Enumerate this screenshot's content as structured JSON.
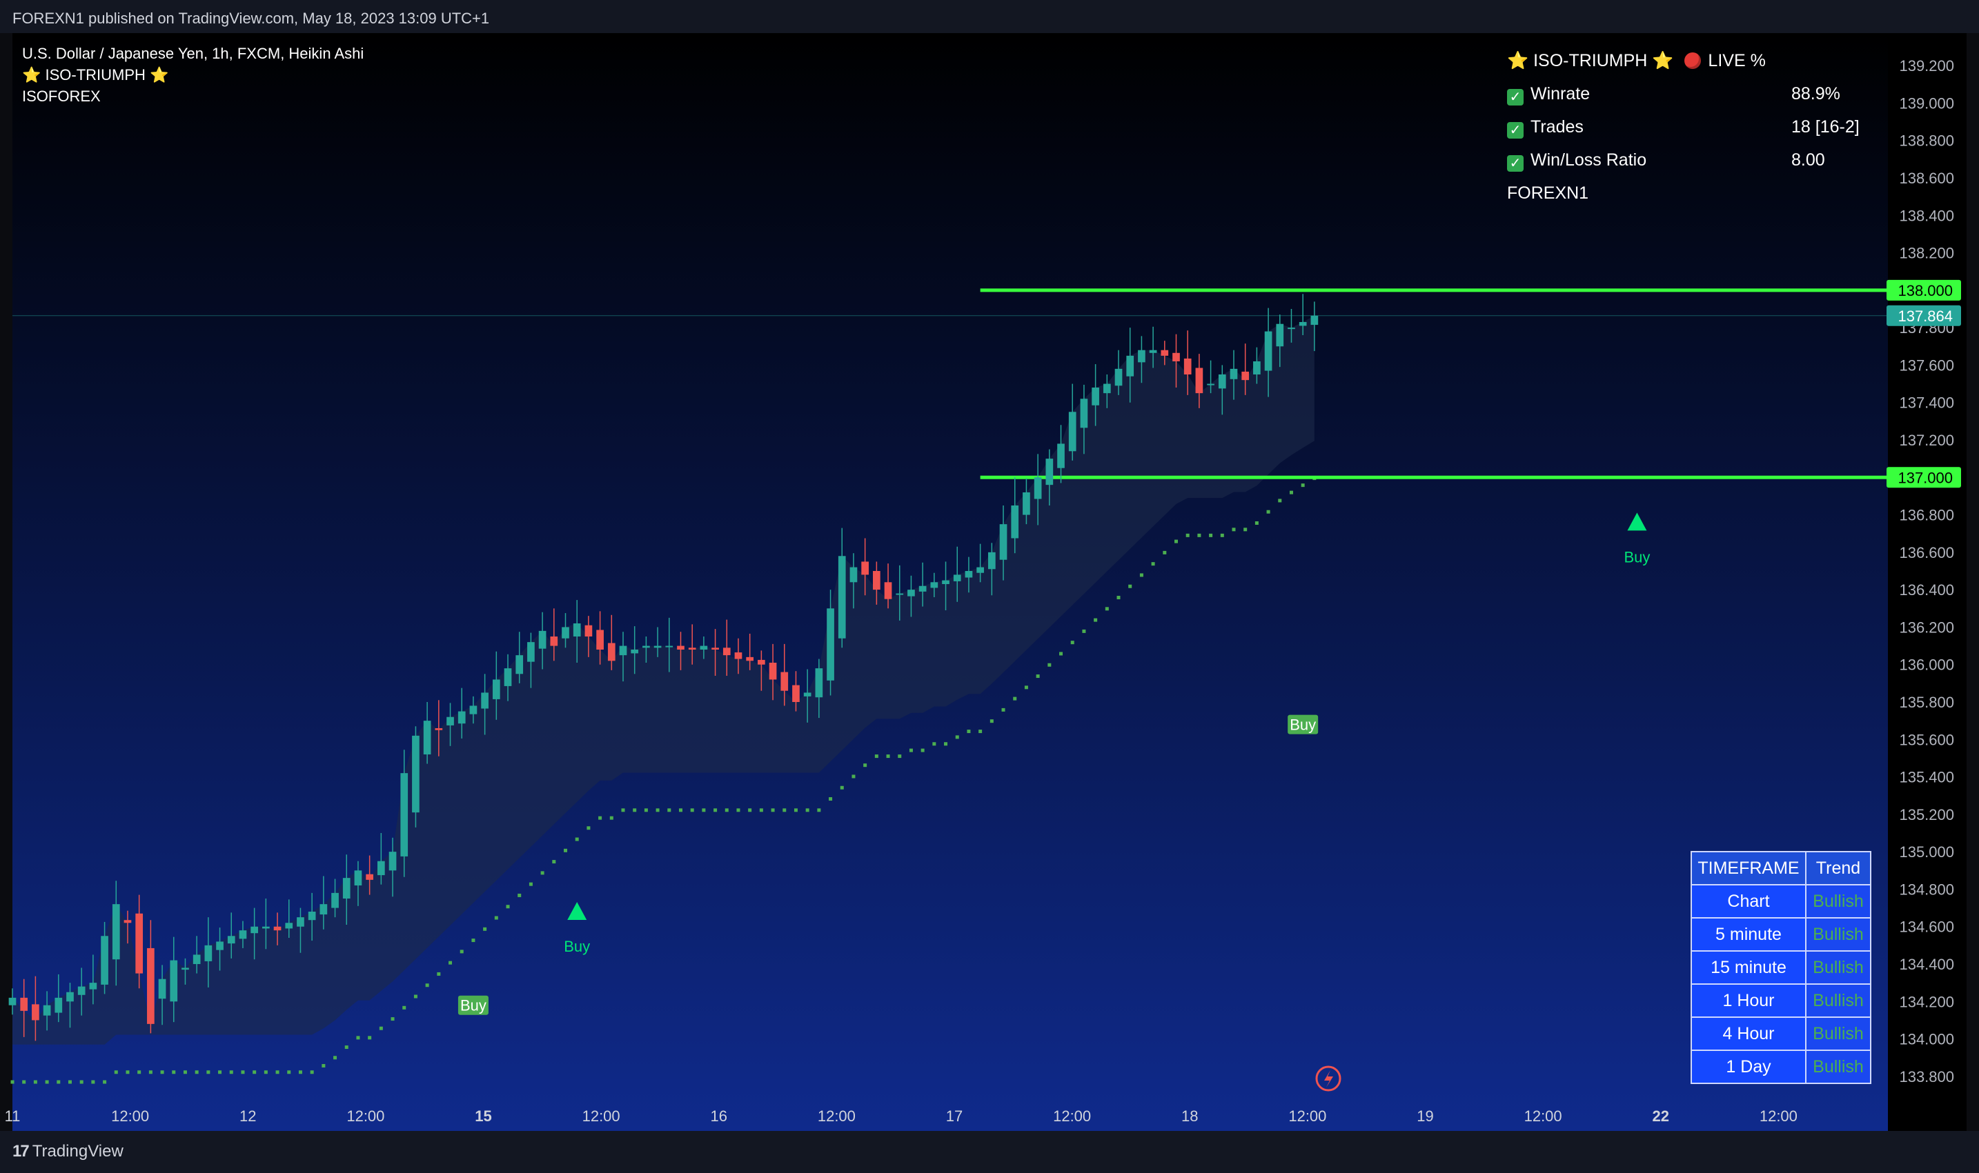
{
  "header": {
    "published": "FOREXN1 published on TradingView.com, May 18, 2023 13:09 UTC+1"
  },
  "legend": {
    "symbol": "U.S. Dollar / Japanese Yen, 1h, FXCM, Heikin Ashi",
    "indicator": "⭐ ISO-TRIUMPH ⭐",
    "author": "ISOFOREX"
  },
  "stats": {
    "title": "⭐ ISO-TRIUMPH ⭐",
    "live_label": "LIVE %",
    "rows": [
      {
        "label": "Winrate",
        "value": "88.9%"
      },
      {
        "label": "Trades",
        "value": "18 [16-2]"
      },
      {
        "label": "Win/Loss Ratio",
        "value": "8.00"
      }
    ],
    "footer": "FOREXN1"
  },
  "trend_table": {
    "headers": [
      "TIMEFRAME",
      "Trend"
    ],
    "rows": [
      {
        "tf": "Chart",
        "trend": "Bullish"
      },
      {
        "tf": "5 minute",
        "trend": "Bullish"
      },
      {
        "tf": "15 minute",
        "trend": "Bullish"
      },
      {
        "tf": "1 Hour",
        "trend": "Bullish"
      },
      {
        "tf": "4 Hour",
        "trend": "Bullish"
      },
      {
        "tf": "1 Day",
        "trend": "Bullish"
      }
    ]
  },
  "footer": {
    "brand": "TradingView",
    "logo_glyph": "17"
  },
  "colors": {
    "bull": "#26a69a",
    "bear": "#ef5350",
    "level": "#39ff3d",
    "signal": "#4caf50",
    "buy_arrow": "#00e676"
  },
  "chart_data": {
    "type": "candlestick",
    "title": "U.S. Dollar / Japanese Yen, 1h, FXCM, Heikin Ashi",
    "ylim": [
      133.7,
      139.3
    ],
    "y_ticks": [
      "139.200",
      "139.000",
      "138.800",
      "138.600",
      "138.400",
      "138.200",
      "138.000",
      "137.800",
      "137.600",
      "137.400",
      "137.200",
      "137.000",
      "136.800",
      "136.600",
      "136.400",
      "136.200",
      "136.000",
      "135.800",
      "135.600",
      "135.400",
      "135.200",
      "135.000",
      "134.800",
      "134.600",
      "134.400",
      "134.200",
      "134.000",
      "133.800"
    ],
    "x_ticks": [
      {
        "label": "11",
        "pos": 0.0
      },
      {
        "label": "12:00",
        "pos": 0.0625
      },
      {
        "label": "12",
        "pos": 0.125
      },
      {
        "label": "12:00",
        "pos": 0.1875
      },
      {
        "label": "15",
        "pos": 0.25,
        "bold": true
      },
      {
        "label": "12:00",
        "pos": 0.3125
      },
      {
        "label": "16",
        "pos": 0.375
      },
      {
        "label": "12:00",
        "pos": 0.4375
      },
      {
        "label": "17",
        "pos": 0.5
      },
      {
        "label": "12:00",
        "pos": 0.5625
      },
      {
        "label": "18",
        "pos": 0.625
      },
      {
        "label": "12:00",
        "pos": 0.6875
      },
      {
        "label": "19",
        "pos": 0.75
      },
      {
        "label": "12:00",
        "pos": 0.8125
      },
      {
        "label": "22",
        "pos": 0.875,
        "bold": true
      },
      {
        "label": "12:00",
        "pos": 0.9375
      }
    ],
    "x_start_pos": 0.0,
    "x_end_pos": 0.6875,
    "closes": [
      134.22,
      134.15,
      134.1,
      134.18,
      134.22,
      134.25,
      134.28,
      134.3,
      134.55,
      134.72,
      134.62,
      134.35,
      134.08,
      134.32,
      134.42,
      134.38,
      134.45,
      134.5,
      134.52,
      134.55,
      134.58,
      134.6,
      134.6,
      134.58,
      134.62,
      134.65,
      134.68,
      134.72,
      134.78,
      134.86,
      134.9,
      134.85,
      134.95,
      135.0,
      135.42,
      135.62,
      135.7,
      135.65,
      135.72,
      135.75,
      135.78,
      135.85,
      135.92,
      135.98,
      136.05,
      136.12,
      136.18,
      136.1,
      136.2,
      136.22,
      136.15,
      136.08,
      136.02,
      136.1,
      136.08,
      136.1,
      136.1,
      136.1,
      136.08,
      136.08,
      136.1,
      136.08,
      136.05,
      136.03,
      136.02,
      136.0,
      135.92,
      135.86,
      135.8,
      135.85,
      135.98,
      136.3,
      136.58,
      136.52,
      136.48,
      136.4,
      136.35,
      136.38,
      136.4,
      136.42,
      136.44,
      136.45,
      136.48,
      136.5,
      136.52,
      136.6,
      136.75,
      136.85,
      136.92,
      137.0,
      137.1,
      137.18,
      137.35,
      137.42,
      137.48,
      137.5,
      137.58,
      137.65,
      137.68,
      137.68,
      137.65,
      137.62,
      137.55,
      137.45,
      137.5,
      137.55,
      137.58,
      137.52,
      137.62,
      137.78,
      137.82,
      137.8,
      137.83,
      137.864
    ],
    "levels": [
      138.0,
      137.0
    ],
    "last_price": "137.864",
    "level_labels": [
      "138.000",
      "137.000"
    ],
    "signals": [
      {
        "label": "Buy",
        "type": "label",
        "bar": 40,
        "price": 134.18
      },
      {
        "label": "Buy",
        "type": "arrow",
        "bar": 49,
        "price": 134.68
      },
      {
        "label": "Buy",
        "type": "label",
        "bar": 112,
        "price": 135.68
      },
      {
        "label": "Buy",
        "type": "arrow",
        "bar": 141,
        "price": 136.76
      }
    ]
  }
}
